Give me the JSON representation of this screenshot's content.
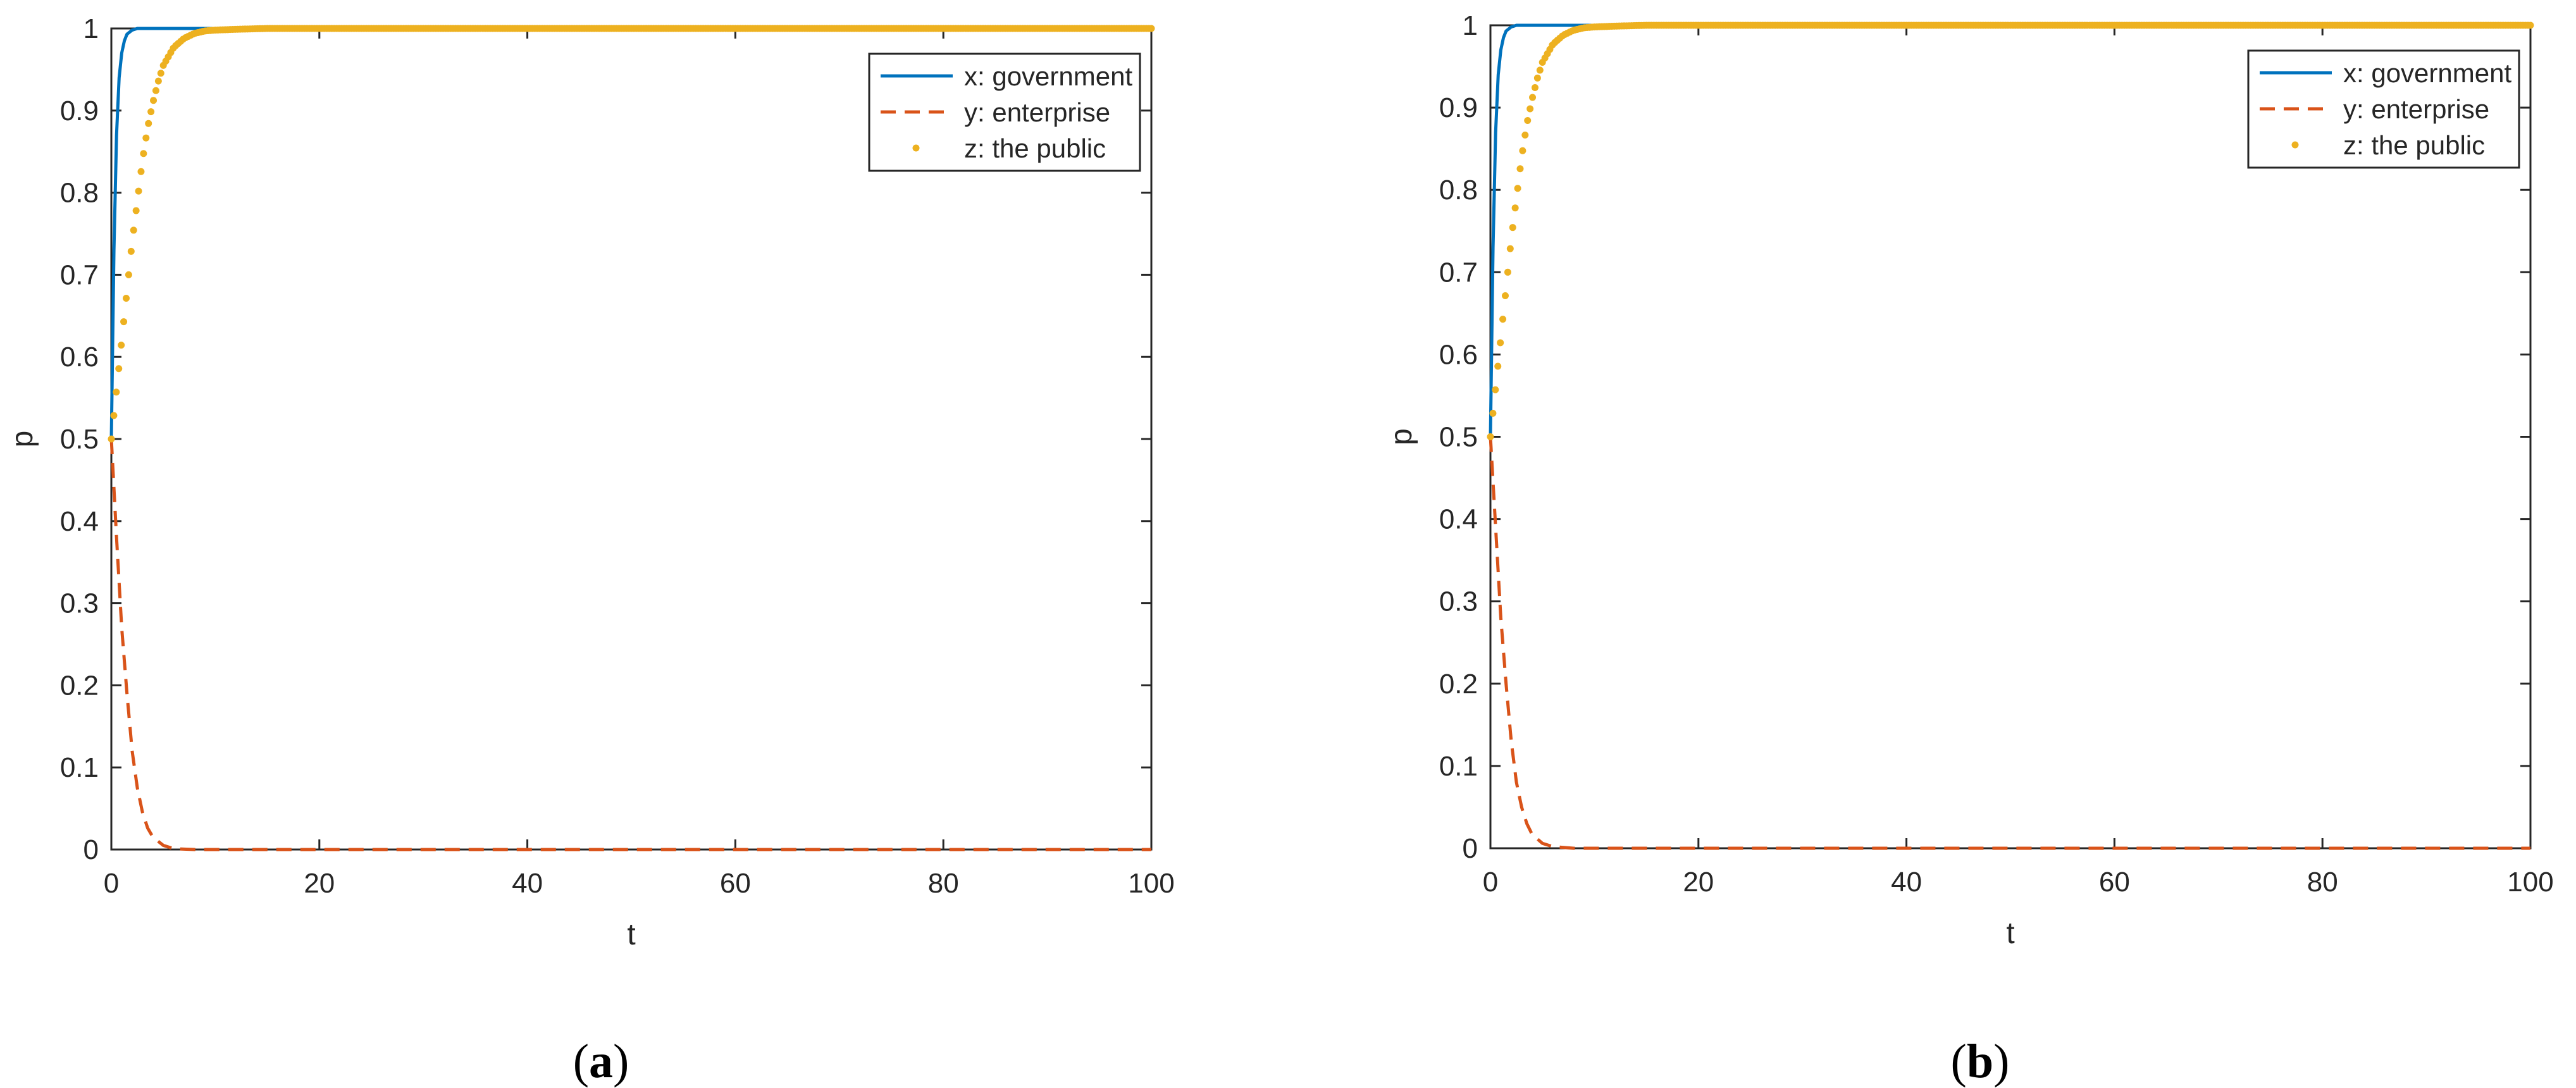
{
  "chart_data": [
    {
      "type": "line",
      "panel_label": "a",
      "xlabel": "t",
      "ylabel": "p",
      "xlim": [
        0,
        100
      ],
      "ylim": [
        0,
        1
      ],
      "x_ticks": [
        0,
        20,
        40,
        60,
        80,
        100
      ],
      "y_ticks": [
        0,
        0.1,
        0.2,
        0.3,
        0.4,
        0.5,
        0.6,
        0.7,
        0.8,
        0.9,
        1
      ],
      "grid": false,
      "legend_position": "top-right",
      "series": [
        {
          "name": "x: government",
          "style": "solid",
          "color": "#0072BD",
          "x": [
            0,
            0.25,
            0.5,
            0.75,
            1,
            1.25,
            1.5,
            2,
            2.5,
            3,
            4,
            5,
            100
          ],
          "y": [
            0.5,
            0.73,
            0.87,
            0.94,
            0.97,
            0.985,
            0.993,
            0.998,
            1,
            1,
            1,
            1,
            1
          ]
        },
        {
          "name": "y: enterprise",
          "style": "dashed",
          "color": "#D95319",
          "x": [
            0,
            0.5,
            1,
            1.5,
            2,
            2.5,
            3,
            3.5,
            4,
            5,
            6,
            8,
            100
          ],
          "y": [
            0.5,
            0.38,
            0.27,
            0.19,
            0.12,
            0.075,
            0.045,
            0.026,
            0.015,
            0.005,
            0.001,
            0,
            0
          ]
        },
        {
          "name": "z: the public",
          "style": "dotted",
          "color": "#EDB120",
          "x": [
            0,
            0.5,
            1,
            1.5,
            2,
            2.5,
            3,
            3.5,
            4,
            4.5,
            5,
            6,
            7,
            8,
            9,
            10,
            12,
            15,
            100
          ],
          "y": [
            0.5,
            0.56,
            0.62,
            0.68,
            0.74,
            0.79,
            0.84,
            0.88,
            0.91,
            0.935,
            0.955,
            0.977,
            0.988,
            0.994,
            0.997,
            0.998,
            0.999,
            1,
            1
          ]
        }
      ]
    },
    {
      "type": "line",
      "panel_label": "b",
      "xlabel": "t",
      "ylabel": "p",
      "xlim": [
        0,
        100
      ],
      "ylim": [
        0,
        1
      ],
      "x_ticks": [
        0,
        20,
        40,
        60,
        80,
        100
      ],
      "y_ticks": [
        0,
        0.1,
        0.2,
        0.3,
        0.4,
        0.5,
        0.6,
        0.7,
        0.8,
        0.9,
        1
      ],
      "grid": false,
      "legend_position": "top-right",
      "series": [
        {
          "name": "x: government",
          "style": "solid",
          "color": "#0072BD",
          "x": [
            0,
            0.25,
            0.5,
            0.75,
            1,
            1.25,
            1.5,
            2,
            2.5,
            3,
            4,
            5,
            100
          ],
          "y": [
            0.5,
            0.73,
            0.87,
            0.94,
            0.97,
            0.985,
            0.993,
            0.998,
            1,
            1,
            1,
            1,
            1
          ]
        },
        {
          "name": "y: enterprise",
          "style": "dashed",
          "color": "#D95319",
          "x": [
            0,
            0.5,
            1,
            1.5,
            2,
            2.5,
            3,
            3.5,
            4,
            5,
            6,
            8,
            100
          ],
          "y": [
            0.5,
            0.39,
            0.28,
            0.2,
            0.13,
            0.08,
            0.05,
            0.03,
            0.017,
            0.006,
            0.002,
            0,
            0
          ]
        },
        {
          "name": "z: the public",
          "style": "dotted",
          "color": "#EDB120",
          "x": [
            0,
            0.5,
            1,
            1.5,
            2,
            2.5,
            3,
            3.5,
            4,
            4.5,
            5,
            6,
            7,
            8,
            9,
            10,
            12,
            15,
            100
          ],
          "y": [
            0.5,
            0.56,
            0.62,
            0.68,
            0.74,
            0.79,
            0.84,
            0.88,
            0.91,
            0.935,
            0.955,
            0.977,
            0.988,
            0.994,
            0.997,
            0.998,
            0.999,
            1,
            1
          ]
        }
      ]
    }
  ]
}
